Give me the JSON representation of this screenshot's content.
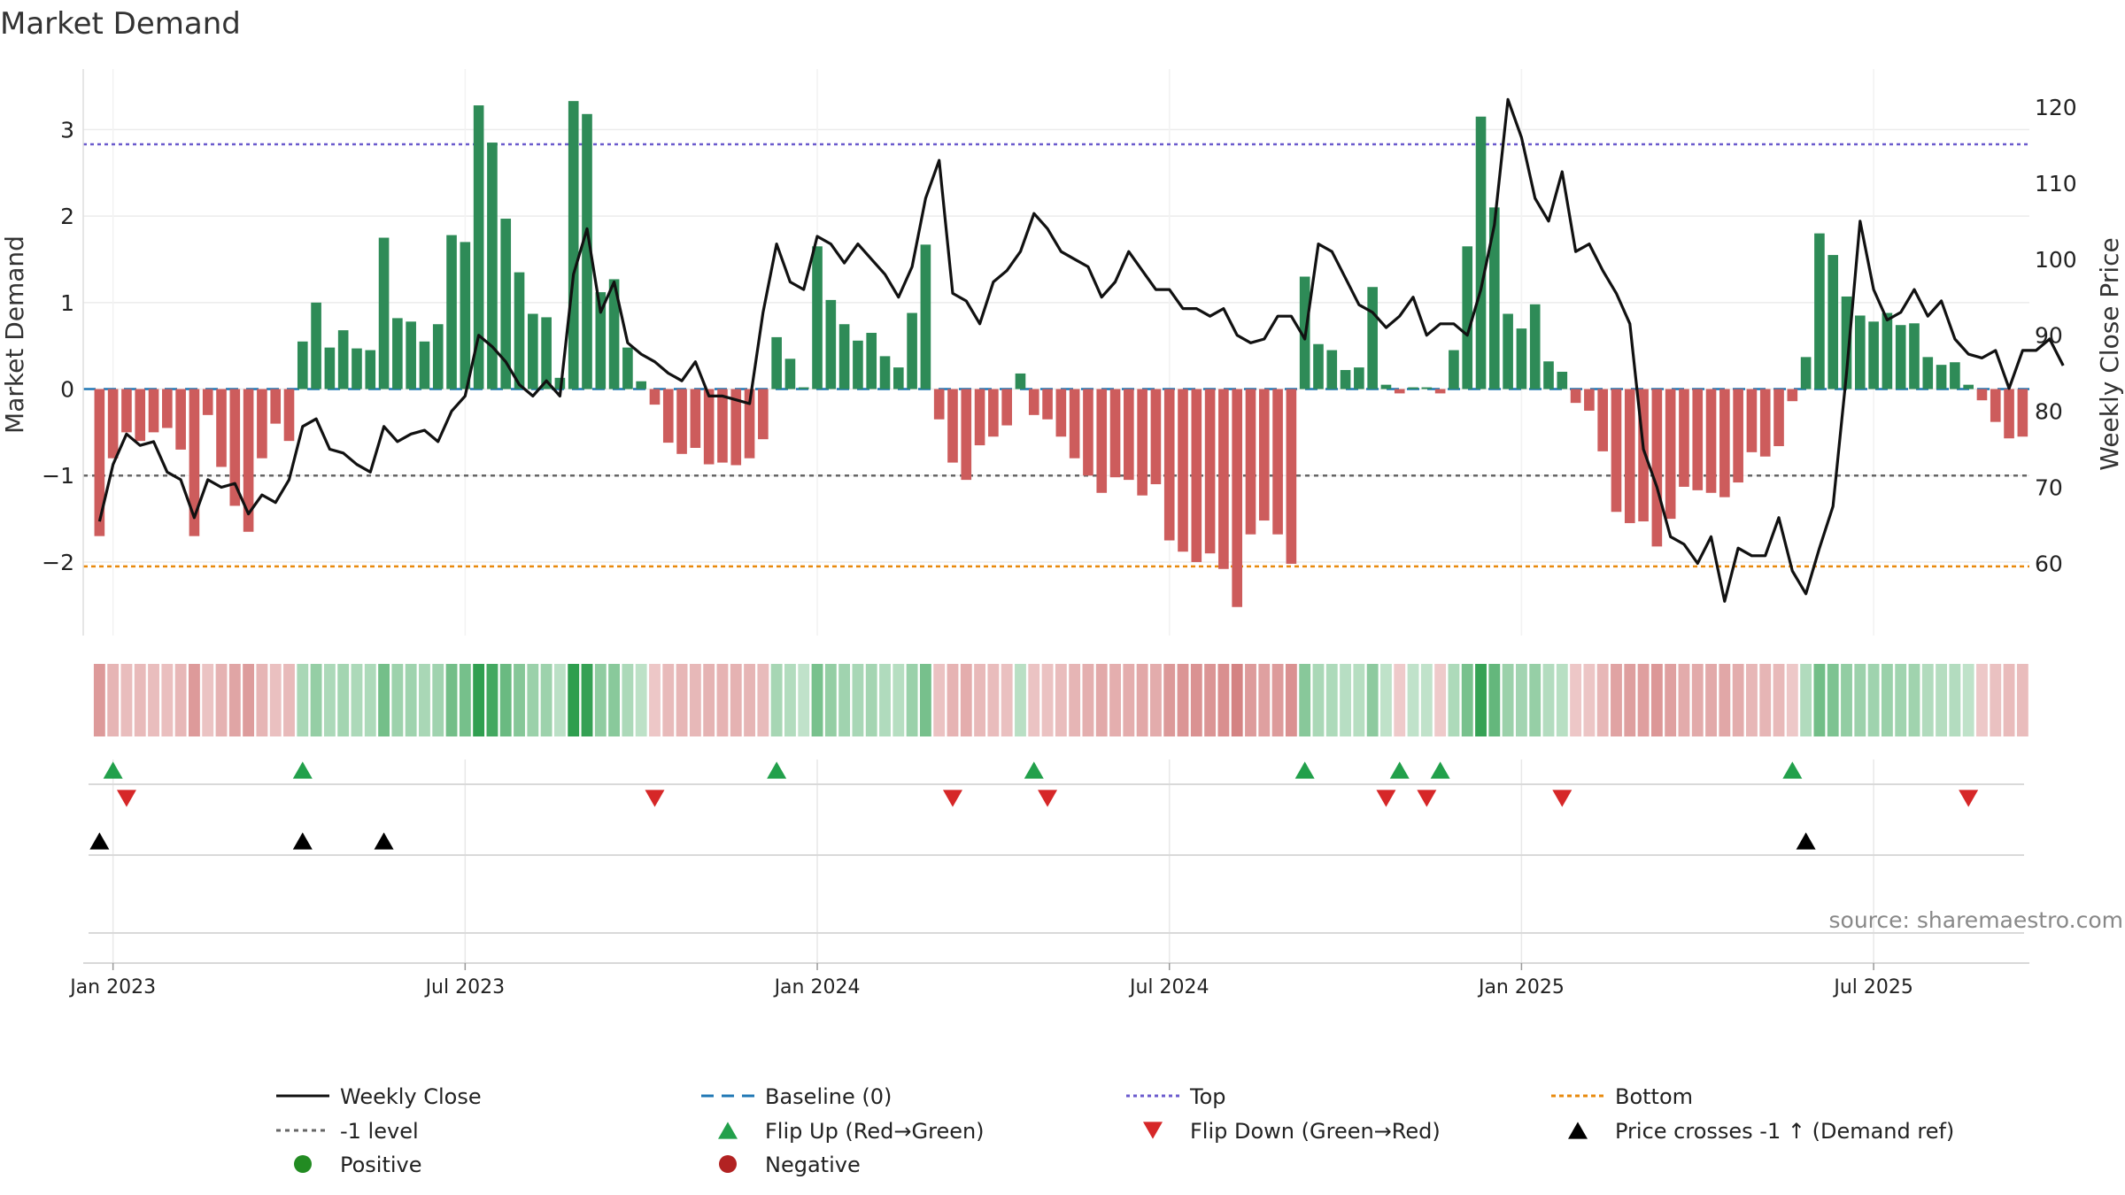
{
  "chart_data": {
    "type": "bar",
    "title": "Market Demand",
    "ylabel_left": "Market Demand",
    "ylabel_right": "Weekly Close Price",
    "y_left_ticks": [
      -2,
      -1,
      0,
      1,
      2,
      3
    ],
    "y_left_tick_labels": [
      "−2",
      "−1",
      "0",
      "1",
      "2",
      "3"
    ],
    "y_left_range": [
      -2.85,
      3.7
    ],
    "y_right_ticks": [
      60,
      70,
      80,
      90,
      100,
      110,
      120
    ],
    "y_right_tick_labels": [
      "60",
      "70",
      "80",
      "90",
      "100",
      "110",
      "120"
    ],
    "y_right_range": [
      50.5,
      125
    ],
    "x_ticks": [
      {
        "label": "Jan 2023",
        "week": 1
      },
      {
        "label": "Jul 2023",
        "week": 27
      },
      {
        "label": "Jan 2024",
        "week": 53
      },
      {
        "label": "Jul 2024",
        "week": 79
      },
      {
        "label": "Jan 2025",
        "week": 105
      },
      {
        "label": "Jul 2025",
        "week": 131
      }
    ],
    "x_range": [
      -1.2,
      142.5
    ],
    "demand": [
      -1.7,
      -0.8,
      -0.5,
      -0.6,
      -0.5,
      -0.45,
      -0.7,
      -1.7,
      -0.3,
      -0.9,
      -1.35,
      -1.65,
      -0.8,
      -0.4,
      -0.6,
      0.55,
      1.0,
      0.48,
      0.68,
      0.47,
      0.45,
      1.75,
      0.82,
      0.78,
      0.55,
      0.75,
      1.78,
      1.7,
      3.28,
      2.85,
      1.97,
      1.35,
      0.87,
      0.83,
      0.13,
      3.33,
      3.18,
      1.12,
      1.27,
      0.48,
      0.09,
      -0.18,
      -0.62,
      -0.75,
      -0.68,
      -0.87,
      -0.85,
      -0.88,
      -0.8,
      -0.58,
      0.6,
      0.35,
      0.02,
      1.65,
      1.03,
      0.75,
      0.56,
      0.65,
      0.38,
      0.25,
      0.88,
      1.67,
      -0.35,
      -0.85,
      -1.05,
      -0.65,
      -0.55,
      -0.42,
      0.18,
      -0.3,
      -0.35,
      -0.55,
      -0.8,
      -1.0,
      -1.2,
      -1.02,
      -1.05,
      -1.23,
      -1.1,
      -1.75,
      -1.88,
      -2.0,
      -1.9,
      -2.08,
      -2.52,
      -1.68,
      -1.52,
      -1.68,
      -2.02,
      1.3,
      0.52,
      0.45,
      0.22,
      0.25,
      1.18,
      0.05,
      -0.05,
      0.02,
      0.02,
      -0.05,
      0.45,
      1.65,
      3.15,
      2.1,
      0.87,
      0.7,
      0.98,
      0.32,
      0.2,
      -0.16,
      -0.25,
      -0.72,
      -1.42,
      -1.55,
      -1.53,
      -1.82,
      -1.5,
      -1.13,
      -1.17,
      -1.2,
      -1.25,
      -1.08,
      -0.73,
      -0.78,
      -0.66,
      -0.14,
      0.37,
      1.8,
      1.55,
      1.07,
      0.85,
      0.78,
      0.88,
      0.74,
      0.76,
      0.37,
      0.28,
      0.31,
      0.05,
      -0.13,
      -0.38,
      -0.57,
      -0.55
    ],
    "weekly_close": [
      65.5,
      73,
      77,
      75.5,
      76,
      72,
      71,
      66,
      71,
      70,
      70.5,
      66.5,
      69,
      68,
      71,
      78,
      79,
      75,
      74.5,
      73,
      72,
      78,
      76,
      77,
      77.5,
      76,
      80,
      82,
      90,
      88.5,
      86.5,
      83.5,
      82,
      84,
      82,
      98,
      104,
      93,
      97,
      89,
      87.5,
      86.5,
      85,
      84,
      86.5,
      82,
      82,
      81.5,
      81,
      93,
      102,
      97,
      96,
      103,
      102,
      99.5,
      102,
      100,
      98,
      95,
      99,
      108,
      113,
      95.5,
      94.5,
      91.5,
      97,
      98.5,
      101,
      106,
      104,
      101,
      100,
      99,
      95,
      97,
      101,
      98.5,
      96,
      96,
      93.5,
      93.5,
      92.5,
      93.5,
      90,
      89,
      89.5,
      92.5,
      92.5,
      89.5,
      102,
      101,
      97.5,
      94,
      93,
      91,
      92.5,
      95,
      90,
      91.5,
      91.5,
      90,
      96,
      104.5,
      121,
      116,
      108,
      105,
      111.5,
      101,
      102,
      98.5,
      95.5,
      91.5,
      75,
      70,
      63.5,
      62.5,
      60,
      63.5,
      55,
      62,
      61,
      61,
      66,
      59,
      56,
      62,
      67.5,
      85,
      105,
      96,
      92,
      93,
      96,
      92.5,
      94.5,
      89.5,
      87.5,
      87,
      88,
      83,
      88,
      88,
      89.5,
      86
    ],
    "demand_heat_strip": "one cell per week; green shades = positive demand, red shades = negative demand, intensity scales with magnitude",
    "flip_up_weeks": [
      1,
      15,
      50,
      69,
      89,
      96,
      99,
      125
    ],
    "flip_down_weeks": [
      2,
      41,
      63,
      70,
      95,
      98,
      108,
      138
    ],
    "price_cross_weeks": [
      0,
      15,
      21,
      126
    ],
    "reference_lines": {
      "top": 2.83,
      "bottom": -2.05,
      "minus_one_level": -1,
      "baseline": 0
    },
    "legend": [
      {
        "label": "Weekly Close",
        "marker": "line-black"
      },
      {
        "label": "Baseline (0)",
        "marker": "dash-blue"
      },
      {
        "label": "Top",
        "marker": "dot-purple"
      },
      {
        "label": "Bottom",
        "marker": "dot-orange"
      },
      {
        "label": "-1 level",
        "marker": "dot-gray"
      },
      {
        "label": "Flip Up (Red→Green)",
        "marker": "triangle-up-green"
      },
      {
        "label": "Flip Down (Green→Red)",
        "marker": "triangle-down-red"
      },
      {
        "label": "Price crosses -1 ↑ (Demand ref)",
        "marker": "triangle-up-black"
      },
      {
        "label": "Positive",
        "marker": "dot-green"
      },
      {
        "label": "Negative",
        "marker": "dot-red"
      }
    ],
    "source": "source: sharemaestro.com",
    "colors": {
      "positive_bar": "#2e8b57",
      "negative_bar": "#cd5c5c",
      "close_line": "#111111",
      "baseline": "#1f77b4",
      "top_line": "#6a5acd",
      "bottom_line": "#e8890c",
      "minus_one_line": "#666666",
      "flip_up": "#22a04b",
      "flip_down": "#d62728",
      "price_cross": "#000000",
      "positive_dot": "#228b22",
      "negative_dot": "#b22222"
    }
  }
}
